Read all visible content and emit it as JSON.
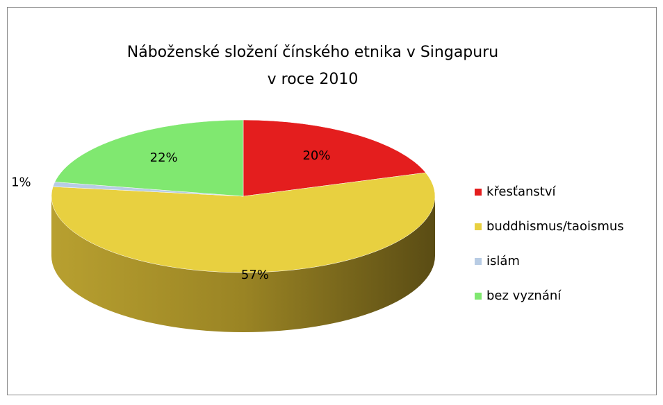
{
  "chart_data": {
    "type": "pie3d",
    "title": [
      "Náboženské složení čínského etnika v Singapuru",
      "v roce 2010"
    ],
    "categories": [
      "křesťanství",
      "buddhismus/taoismus",
      "islám",
      "bez vyznání"
    ],
    "values": [
      20,
      57,
      1,
      22
    ],
    "value_labels": [
      "20%",
      "57%",
      "1%",
      "22%"
    ],
    "colors": [
      "#e41e1e",
      "#e8d040",
      "#b8cce4",
      "#80e870"
    ],
    "legend": "right"
  }
}
